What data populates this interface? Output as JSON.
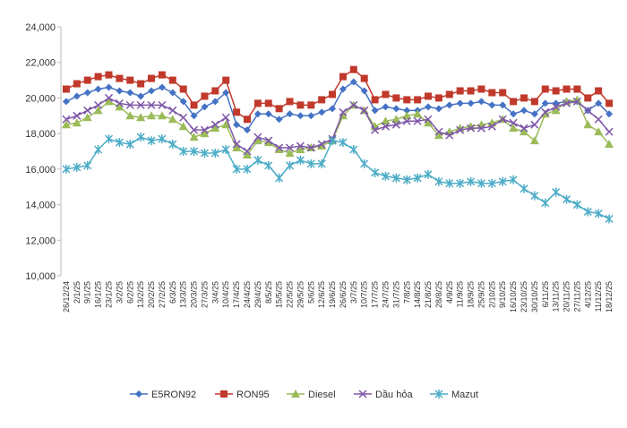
{
  "chart_data": {
    "type": "line",
    "categories": [
      "26/12/24",
      "2/1/25",
      "9/1/25",
      "16/1/25",
      "23/1/25",
      "3/2/25",
      "6/2/25",
      "13/2/25",
      "20/2/25",
      "27/2/25",
      "6/3/25",
      "13/3/25",
      "20/3/25",
      "27/3/25",
      "3/4/25",
      "10/4/25",
      "17/4/25",
      "24/4/25",
      "29/4/25",
      "8/5/25",
      "15/5/25",
      "22/5/25",
      "29/5/25",
      "5/6/25",
      "12/6/25",
      "19/6/25",
      "26/6/25",
      "3/7/25",
      "10/7/25",
      "17/7/25",
      "24/7/25",
      "31/7/25",
      "7/8/25",
      "14/8/25",
      "21/8/25",
      "28/8/25",
      "4/9/25",
      "11/9/25",
      "18/9/25",
      "25/9/25",
      "2/10/25",
      "9/10/25",
      "16/10/25",
      "23/10/25",
      "30/10/25",
      "6/11/25",
      "13/11/25",
      "20/11/25",
      "27/11/25",
      "4/12/25",
      "11/12/25",
      "18/12/25"
    ],
    "series": [
      {
        "name": "E5RON92",
        "color": "#4472c4",
        "marker": "diamond",
        "values": [
          19800,
          20100,
          20300,
          20500,
          20600,
          20400,
          20300,
          20100,
          20400,
          20600,
          20300,
          19800,
          19000,
          19500,
          19800,
          20300,
          18500,
          18200,
          19100,
          19100,
          18800,
          19100,
          19000,
          19000,
          19200,
          19400,
          20500,
          20900,
          20400,
          19300,
          19500,
          19400,
          19300,
          19300,
          19500,
          19400,
          19600,
          19700,
          19700,
          19800,
          19600,
          19600,
          19100,
          19300,
          19100,
          19700,
          19700,
          19800,
          19800,
          19300,
          19700,
          19100
        ]
      },
      {
        "name": "RON95",
        "color": "#c0392b",
        "marker": "square",
        "values": [
          20500,
          20800,
          21000,
          21200,
          21300,
          21100,
          21000,
          20800,
          21100,
          21300,
          21000,
          20500,
          19600,
          20100,
          20400,
          21000,
          19200,
          18800,
          19700,
          19700,
          19400,
          19800,
          19600,
          19600,
          19900,
          20200,
          21200,
          21600,
          21100,
          19900,
          20200,
          20000,
          19900,
          19900,
          20100,
          20000,
          20200,
          20400,
          20400,
          20500,
          20300,
          20300,
          19800,
          20000,
          19800,
          20500,
          20400,
          20500,
          20500,
          20000,
          20400,
          19700
        ]
      },
      {
        "name": "Diesel",
        "color": "#9bbb59",
        "marker": "triangle",
        "values": [
          18500,
          18600,
          18900,
          19300,
          19800,
          19500,
          19000,
          18900,
          19000,
          19000,
          18800,
          18400,
          17800,
          18000,
          18300,
          18500,
          17200,
          16800,
          17600,
          17500,
          17100,
          16900,
          17100,
          17200,
          17300,
          17600,
          19000,
          19600,
          19300,
          18400,
          18700,
          18800,
          19000,
          19100,
          18600,
          17900,
          18100,
          18300,
          18400,
          18500,
          18600,
          18800,
          18300,
          18100,
          17600,
          19100,
          19300,
          19800,
          19900,
          18500,
          18100,
          17400
        ]
      },
      {
        "name": "Dầu hỏa",
        "color": "#7e57a8",
        "marker": "x",
        "values": [
          18800,
          19000,
          19300,
          19600,
          20000,
          19700,
          19600,
          19600,
          19600,
          19600,
          19300,
          18900,
          18200,
          18200,
          18500,
          18900,
          17400,
          17000,
          17800,
          17600,
          17200,
          17200,
          17300,
          17200,
          17400,
          17700,
          19200,
          19600,
          19300,
          18200,
          18400,
          18500,
          18700,
          18700,
          18800,
          18100,
          17900,
          18200,
          18300,
          18300,
          18400,
          18800,
          18600,
          18300,
          18500,
          19200,
          19500,
          19700,
          19800,
          19300,
          18800,
          18100
        ]
      },
      {
        "name": "Mazut",
        "color": "#4bacc6",
        "marker": "star",
        "values": [
          16000,
          16100,
          16200,
          17100,
          17700,
          17500,
          17400,
          17800,
          17600,
          17700,
          17400,
          17000,
          17000,
          16900,
          16900,
          17100,
          16000,
          16000,
          16500,
          16200,
          15500,
          16200,
          16500,
          16300,
          16300,
          17600,
          17500,
          17100,
          16300,
          15800,
          15600,
          15500,
          15400,
          15500,
          15700,
          15300,
          15200,
          15200,
          15300,
          15200,
          15200,
          15300,
          15400,
          14900,
          14500,
          14100,
          14700,
          14300,
          14000,
          13600,
          13500,
          13200
        ]
      }
    ],
    "ylim": [
      10000,
      24000
    ],
    "yticks": [
      {
        "value": 10000,
        "label": "10,000"
      },
      {
        "value": 12000,
        "label": "12,000"
      },
      {
        "value": 14000,
        "label": "14,000"
      },
      {
        "value": 16000,
        "label": "16,000"
      },
      {
        "value": 18000,
        "label": "18,000"
      },
      {
        "value": 20000,
        "label": "20,000"
      },
      {
        "value": 22000,
        "label": "22,000"
      },
      {
        "value": 24000,
        "label": "24,000"
      }
    ],
    "legend": "bottom"
  }
}
